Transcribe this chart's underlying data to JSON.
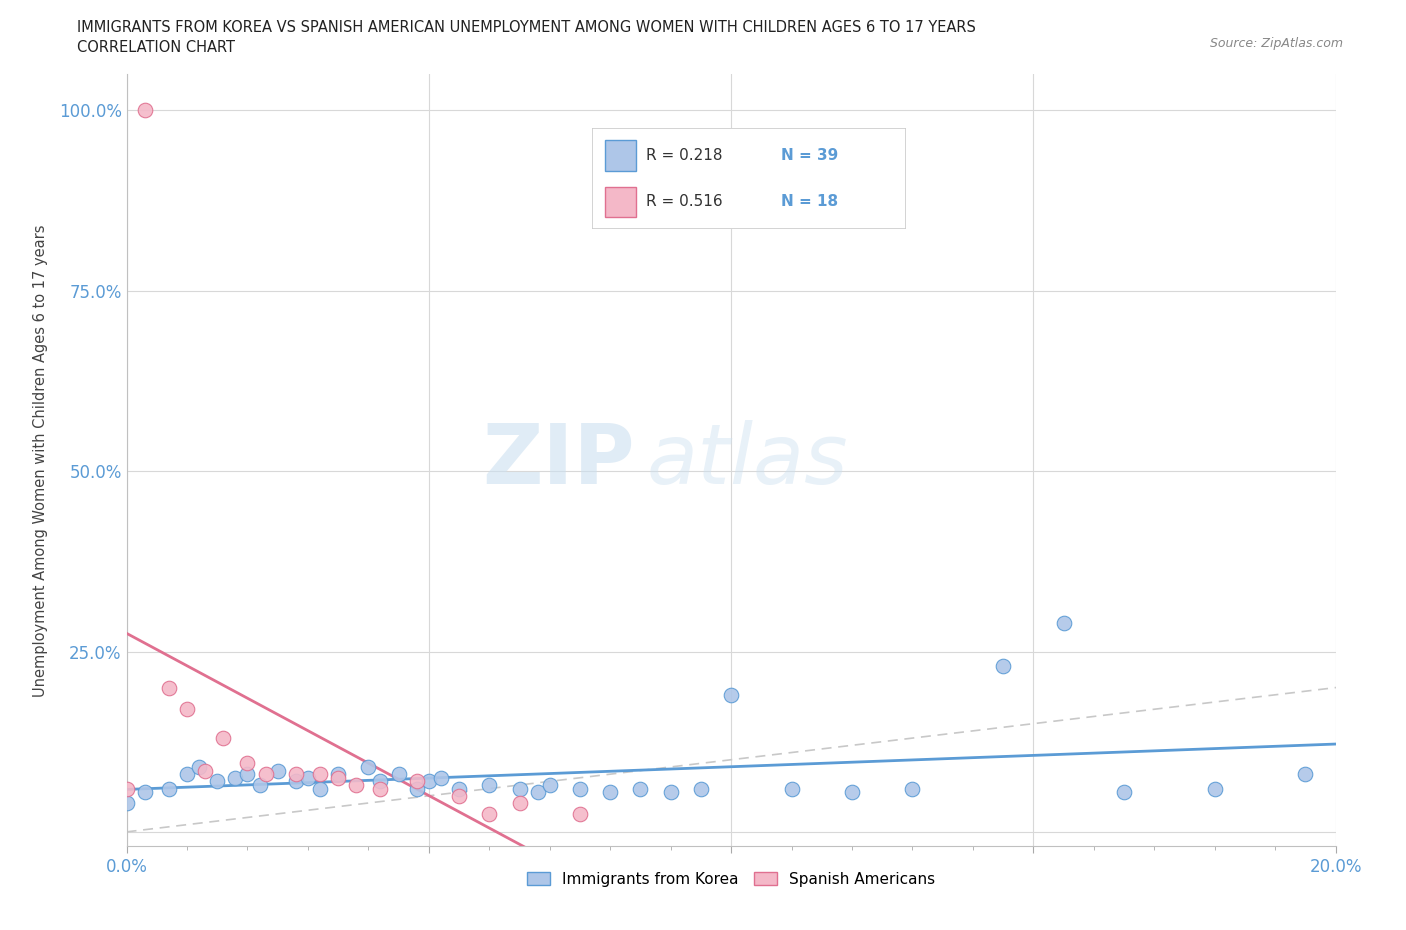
{
  "title_line1": "IMMIGRANTS FROM KOREA VS SPANISH AMERICAN UNEMPLOYMENT AMONG WOMEN WITH CHILDREN AGES 6 TO 17 YEARS",
  "title_line2": "CORRELATION CHART",
  "source_text": "Source: ZipAtlas.com",
  "ylabel": "Unemployment Among Women with Children Ages 6 to 17 years",
  "xlim": [
    0.0,
    0.2
  ],
  "ylim": [
    -0.02,
    1.05
  ],
  "x_ticks": [
    0.0,
    0.05,
    0.1,
    0.15,
    0.2
  ],
  "x_tick_labels": [
    "0.0%",
    "",
    "",
    "",
    "20.0%"
  ],
  "y_ticks": [
    0.0,
    0.25,
    0.5,
    0.75,
    1.0
  ],
  "y_tick_labels": [
    "",
    "25.0%",
    "50.0%",
    "75.0%",
    "100.0%"
  ],
  "korea_color": "#aec6e8",
  "korea_edge_color": "#5b9bd5",
  "spanish_color": "#f4b8c8",
  "spanish_edge_color": "#e07090",
  "trendline_korea_color": "#5b9bd5",
  "trendline_spanish_color": "#e07090",
  "diagonal_color": "#c8c8c8",
  "R_korea": 0.218,
  "N_korea": 39,
  "R_spanish": 0.516,
  "N_spanish": 18,
  "korea_x": [
    0.0,
    0.003,
    0.007,
    0.01,
    0.012,
    0.015,
    0.018,
    0.02,
    0.022,
    0.025,
    0.028,
    0.03,
    0.032,
    0.035,
    0.04,
    0.042,
    0.045,
    0.048,
    0.05,
    0.052,
    0.055,
    0.06,
    0.065,
    0.068,
    0.07,
    0.075,
    0.08,
    0.085,
    0.09,
    0.095,
    0.1,
    0.11,
    0.12,
    0.13,
    0.145,
    0.155,
    0.165,
    0.18,
    0.195
  ],
  "korea_y": [
    0.04,
    0.055,
    0.06,
    0.08,
    0.09,
    0.07,
    0.075,
    0.08,
    0.065,
    0.085,
    0.07,
    0.075,
    0.06,
    0.08,
    0.09,
    0.07,
    0.08,
    0.06,
    0.07,
    0.075,
    0.06,
    0.065,
    0.06,
    0.055,
    0.065,
    0.06,
    0.055,
    0.06,
    0.055,
    0.06,
    0.19,
    0.06,
    0.055,
    0.06,
    0.23,
    0.29,
    0.055,
    0.06,
    0.08
  ],
  "spanish_x": [
    0.0,
    0.003,
    0.007,
    0.01,
    0.013,
    0.016,
    0.02,
    0.023,
    0.028,
    0.032,
    0.035,
    0.038,
    0.042,
    0.048,
    0.055,
    0.06,
    0.065,
    0.075
  ],
  "spanish_y": [
    0.06,
    1.0,
    0.2,
    0.17,
    0.085,
    0.13,
    0.095,
    0.08,
    0.08,
    0.08,
    0.075,
    0.065,
    0.06,
    0.07,
    0.05,
    0.025,
    0.04,
    0.025
  ],
  "watermark_text1": "ZIP",
  "watermark_text2": "atlas",
  "legend_label_korea": "Immigrants from Korea",
  "legend_label_spanish": "Spanish Americans"
}
